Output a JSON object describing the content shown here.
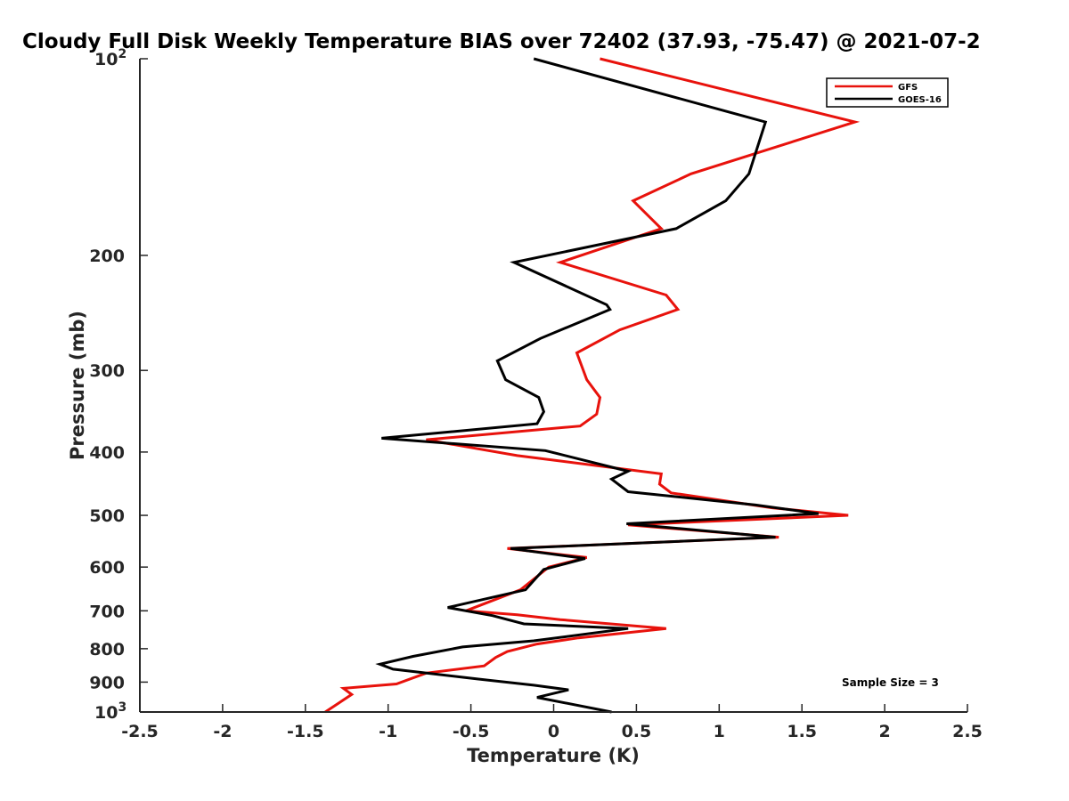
{
  "chart_data": {
    "type": "line",
    "title": "Cloudy Full Disk Weekly Temperature BIAS over 72402 (37.93, -75.47) @ 2021-07-2",
    "xlabel": "Temperature (K)",
    "ylabel": "Pressure (mb)",
    "xlim": [
      -2.5,
      2.5
    ],
    "ylim": [
      100,
      1000
    ],
    "y_scale": "log",
    "y_reversed": true,
    "grid": false,
    "legend_position": "top-right",
    "x_ticks": [
      "-2.5",
      "-2",
      "-1.5",
      "-1",
      "-0.5",
      "0",
      "0.5",
      "1",
      "1.5",
      "2",
      "2.5"
    ],
    "x_tick_values": [
      -2.5,
      -2,
      -1.5,
      -1,
      -0.5,
      0,
      0.5,
      1,
      1.5,
      2,
      2.5
    ],
    "y_ticks": [
      {
        "value": 100,
        "base": "10",
        "exp": "2"
      },
      {
        "value": 200,
        "label": "200"
      },
      {
        "value": 300,
        "label": "300"
      },
      {
        "value": 400,
        "label": "400"
      },
      {
        "value": 500,
        "label": "500"
      },
      {
        "value": 600,
        "label": "600"
      },
      {
        "value": 700,
        "label": "700"
      },
      {
        "value": 800,
        "label": "800"
      },
      {
        "value": 900,
        "label": "900"
      },
      {
        "value": 1000,
        "base": "10",
        "exp": "3"
      }
    ],
    "series": [
      {
        "name": "GFS",
        "color": "#e8120c",
        "points": [
          [
            0.28,
            100
          ],
          [
            1.82,
            125
          ],
          [
            0.83,
            150
          ],
          [
            0.48,
            165
          ],
          [
            0.65,
            182
          ],
          [
            0.04,
            205
          ],
          [
            0.68,
            230
          ],
          [
            0.75,
            242
          ],
          [
            0.4,
            260
          ],
          [
            0.14,
            282
          ],
          [
            0.2,
            310
          ],
          [
            0.28,
            330
          ],
          [
            0.26,
            350
          ],
          [
            0.16,
            365
          ],
          [
            -0.77,
            383
          ],
          [
            -0.22,
            405
          ],
          [
            0.65,
            432
          ],
          [
            0.64,
            448
          ],
          [
            0.71,
            462
          ],
          [
            1.32,
            487
          ],
          [
            1.78,
            500
          ],
          [
            0.45,
            517
          ],
          [
            1.36,
            540
          ],
          [
            -0.28,
            562
          ],
          [
            0.2,
            580
          ],
          [
            -0.03,
            600
          ],
          [
            -0.2,
            650
          ],
          [
            -0.53,
            700
          ],
          [
            -0.22,
            710
          ],
          [
            0.04,
            722
          ],
          [
            0.68,
            745
          ],
          [
            0.15,
            770
          ],
          [
            -0.1,
            787
          ],
          [
            -0.28,
            808
          ],
          [
            -0.35,
            825
          ],
          [
            -0.42,
            850
          ],
          [
            -0.77,
            872
          ],
          [
            -0.95,
            906
          ],
          [
            -1.27,
            920
          ],
          [
            -1.22,
            940
          ],
          [
            -1.38,
            1000
          ]
        ]
      },
      {
        "name": "GOES-16",
        "color": "#000000",
        "points": [
          [
            -0.12,
            100
          ],
          [
            1.28,
            125
          ],
          [
            1.18,
            150
          ],
          [
            1.04,
            165
          ],
          [
            0.74,
            182
          ],
          [
            -0.24,
            205
          ],
          [
            0.32,
            238
          ],
          [
            0.34,
            242
          ],
          [
            -0.08,
            268
          ],
          [
            -0.34,
            290
          ],
          [
            -0.29,
            310
          ],
          [
            -0.09,
            330
          ],
          [
            -0.06,
            347
          ],
          [
            -0.1,
            362
          ],
          [
            -1.04,
            381
          ],
          [
            -0.05,
            398
          ],
          [
            0.45,
            428
          ],
          [
            0.35,
            440
          ],
          [
            0.45,
            460
          ],
          [
            1.22,
            482
          ],
          [
            1.6,
            497
          ],
          [
            0.44,
            515
          ],
          [
            1.34,
            540
          ],
          [
            -0.26,
            562
          ],
          [
            0.19,
            582
          ],
          [
            -0.06,
            605
          ],
          [
            -0.17,
            650
          ],
          [
            -0.64,
            692
          ],
          [
            -0.37,
            712
          ],
          [
            -0.18,
            733
          ],
          [
            0.45,
            745
          ],
          [
            -0.12,
            778
          ],
          [
            -0.55,
            795
          ],
          [
            -0.85,
            822
          ],
          [
            -1.05,
            845
          ],
          [
            -0.97,
            860
          ],
          [
            -0.46,
            890
          ],
          [
            -0.12,
            910
          ],
          [
            0.09,
            925
          ],
          [
            -0.1,
            950
          ],
          [
            0.35,
            1000
          ]
        ]
      }
    ],
    "annotation": "Sample Size = 3"
  }
}
